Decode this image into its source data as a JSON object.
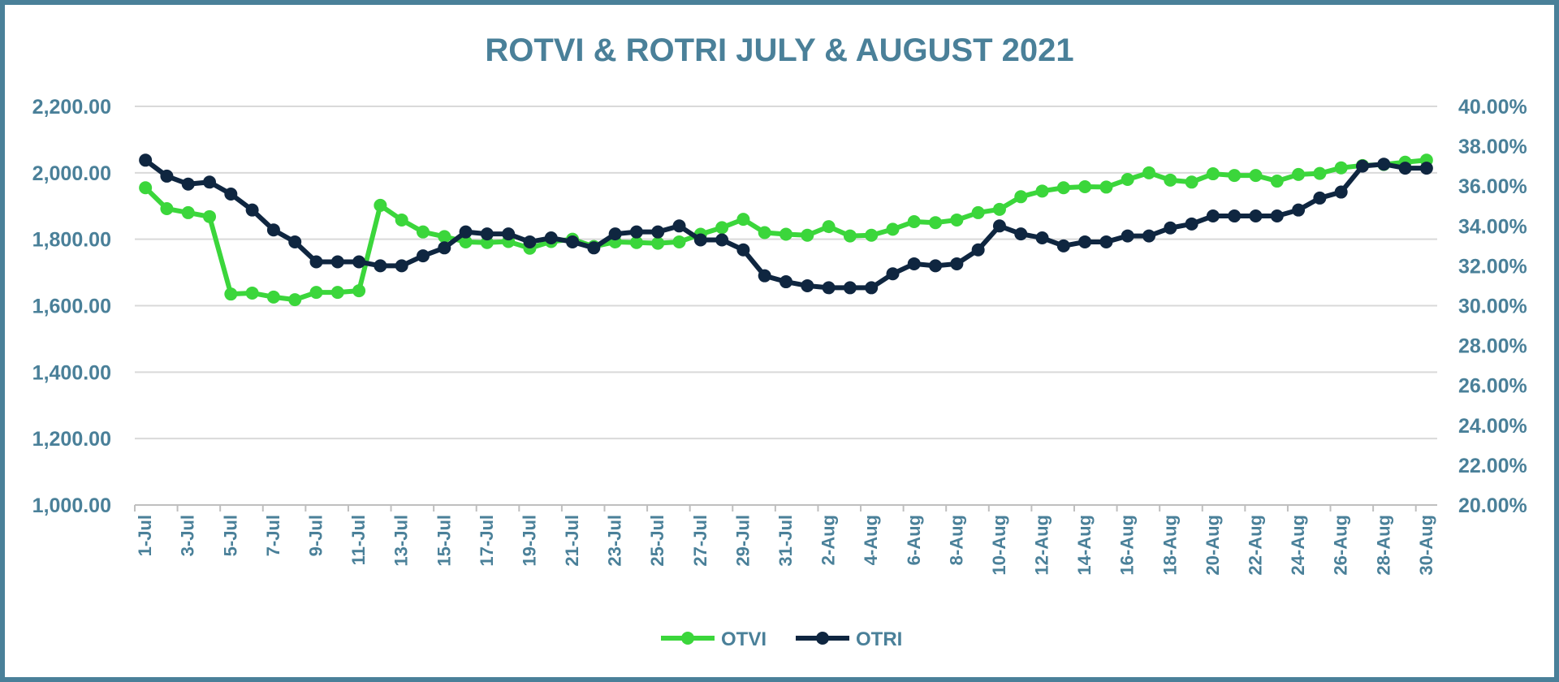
{
  "chart_data": {
    "type": "line",
    "title": "ROTVI & ROTRI JULY & AUGUST 2021",
    "colors": {
      "OTVI": "#3bd63b",
      "OTRI": "#0f2640",
      "text": "#4a8099",
      "grid": "#d9d9d9",
      "frame": "#4a8099"
    },
    "x": [
      "1-Jul",
      "2-Jul",
      "3-Jul",
      "4-Jul",
      "5-Jul",
      "6-Jul",
      "7-Jul",
      "8-Jul",
      "9-Jul",
      "10-Jul",
      "11-Jul",
      "12-Jul",
      "13-Jul",
      "14-Jul",
      "15-Jul",
      "16-Jul",
      "17-Jul",
      "18-Jul",
      "19-Jul",
      "20-Jul",
      "21-Jul",
      "22-Jul",
      "23-Jul",
      "24-Jul",
      "25-Jul",
      "26-Jul",
      "27-Jul",
      "28-Jul",
      "29-Jul",
      "30-Jul",
      "31-Jul",
      "1-Aug",
      "2-Aug",
      "3-Aug",
      "4-Aug",
      "5-Aug",
      "6-Aug",
      "7-Aug",
      "8-Aug",
      "9-Aug",
      "10-Aug",
      "11-Aug",
      "12-Aug",
      "13-Aug",
      "14-Aug",
      "15-Aug",
      "16-Aug",
      "17-Aug",
      "18-Aug",
      "19-Aug",
      "20-Aug",
      "21-Aug",
      "22-Aug",
      "23-Aug",
      "24-Aug",
      "25-Aug",
      "26-Aug",
      "27-Aug",
      "28-Aug",
      "29-Aug",
      "30-Aug"
    ],
    "x_tick_labels": [
      "1-Jul",
      "3-Jul",
      "5-Jul",
      "7-Jul",
      "9-Jul",
      "11-Jul",
      "13-Jul",
      "15-Jul",
      "17-Jul",
      "19-Jul",
      "21-Jul",
      "23-Jul",
      "25-Jul",
      "27-Jul",
      "29-Jul",
      "31-Jul",
      "2-Aug",
      "4-Aug",
      "6-Aug",
      "8-Aug",
      "10-Aug",
      "12-Aug",
      "14-Aug",
      "16-Aug",
      "18-Aug",
      "20-Aug",
      "22-Aug",
      "24-Aug",
      "26-Aug",
      "28-Aug",
      "30-Aug"
    ],
    "y_left": {
      "min": 1000,
      "max": 2200,
      "ticks": [
        "1,000.00",
        "1,200.00",
        "1,400.00",
        "1,600.00",
        "1,800.00",
        "2,000.00",
        "2,200.00"
      ]
    },
    "y_right": {
      "min": 20,
      "max": 40,
      "unit": "%",
      "ticks": [
        "20.00%",
        "22.00%",
        "24.00%",
        "26.00%",
        "28.00%",
        "30.00%",
        "32.00%",
        "34.00%",
        "36.00%",
        "38.00%",
        "40.00%"
      ]
    },
    "series": [
      {
        "name": "OTVI",
        "axis": "left",
        "values": [
          1955,
          1892,
          1880,
          1868,
          1635,
          1638,
          1626,
          1618,
          1640,
          1640,
          1645,
          1902,
          1858,
          1822,
          1808,
          1792,
          1790,
          1793,
          1773,
          1793,
          1800,
          1778,
          1792,
          1790,
          1788,
          1792,
          1815,
          1835,
          1860,
          1820,
          1815,
          1812,
          1838,
          1810,
          1812,
          1830,
          1853,
          1850,
          1858,
          1880,
          1890,
          1928,
          1945,
          1955,
          1958,
          1957,
          1980,
          2000,
          1978,
          1972,
          1997,
          1992,
          1992,
          1975,
          1995,
          1998,
          2015,
          2022,
          2025,
          2032,
          2038
        ]
      },
      {
        "name": "OTRI",
        "axis": "right",
        "values": [
          37.3,
          36.5,
          36.1,
          36.2,
          35.6,
          34.8,
          33.8,
          33.2,
          32.2,
          32.2,
          32.2,
          32.0,
          32.0,
          32.5,
          32.9,
          33.7,
          33.6,
          33.6,
          33.2,
          33.4,
          33.2,
          32.9,
          33.6,
          33.7,
          33.7,
          34.0,
          33.3,
          33.3,
          32.8,
          31.5,
          31.2,
          31.0,
          30.9,
          30.9,
          30.9,
          31.6,
          32.1,
          32.0,
          32.1,
          32.8,
          34.0,
          33.6,
          33.4,
          33.0,
          33.2,
          33.2,
          33.5,
          33.5,
          33.9,
          34.1,
          34.5,
          34.5,
          34.5,
          34.5,
          34.8,
          35.4,
          35.7,
          37.0,
          37.1,
          36.9,
          36.9
        ]
      }
    ],
    "legend": {
      "position": "bottom",
      "entries": [
        "OTVI",
        "OTRI"
      ]
    },
    "grid": true
  }
}
